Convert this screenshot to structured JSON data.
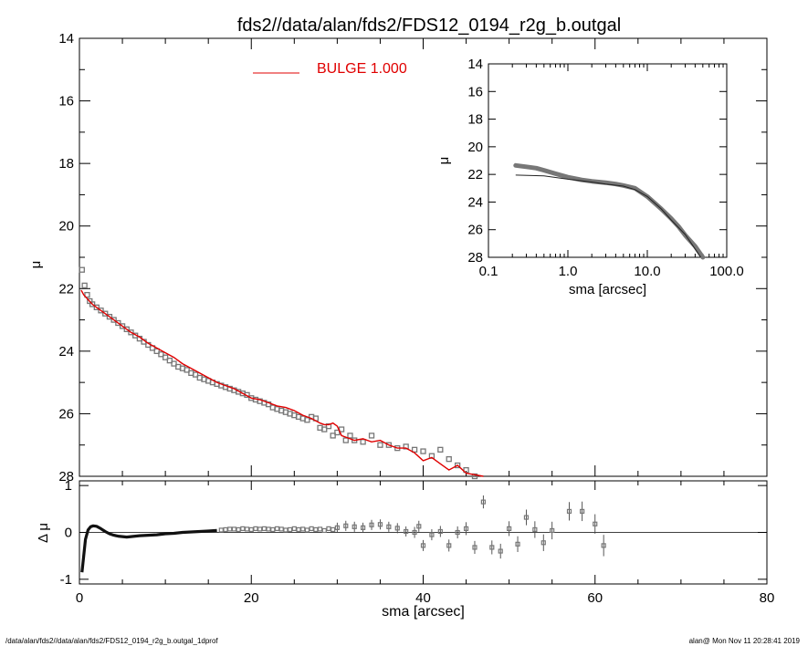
{
  "title": "fds2//data/alan/fds2/FDS12_0194_r2g_b.outgal",
  "footer": {
    "left": "/data/alan/fds2//data/alan/fds2/FDS12_0194_r2g_b.outgal_1dprof",
    "right": "alan@  Mon Nov 11 20:28:41 2019"
  },
  "colors": {
    "model": "#e00000",
    "data": "#777777",
    "axes": "#000000"
  },
  "chart_data": [
    {
      "id": "main-profile",
      "type": "scatter",
      "ylabel": "μ",
      "xlim": [
        0,
        80
      ],
      "ylim": [
        28,
        14
      ],
      "y_inverted": true,
      "yticks": [
        14,
        16,
        18,
        20,
        22,
        24,
        26,
        28
      ],
      "legend": {
        "text": "BULGE  1.000",
        "placement": "top-center"
      },
      "series": [
        {
          "role": "data",
          "x": [
            0.3,
            0.6,
            0.9,
            1.2,
            1.5,
            2,
            2.5,
            3,
            3.5,
            4,
            4.5,
            5,
            5.5,
            6,
            6.5,
            7,
            7.5,
            8,
            8.5,
            9,
            9.5,
            10,
            10.5,
            11,
            11.5,
            12,
            12.5,
            13,
            13.5,
            14,
            14.5,
            15,
            15.5,
            16,
            16.5,
            17,
            17.5,
            18,
            18.5,
            19,
            19.5,
            20,
            20.5,
            21,
            21.5,
            22,
            22.5,
            23,
            23.5,
            24,
            24.5,
            25,
            25.5,
            26,
            26.5,
            27,
            27.5,
            28,
            28.5,
            29,
            29.5,
            30,
            30.5,
            31,
            31.5,
            32,
            33,
            34,
            35,
            36,
            37,
            38,
            39,
            40,
            41,
            42,
            43,
            44,
            45,
            46,
            47,
            48,
            49
          ],
          "y": [
            21.4,
            21.9,
            22.2,
            22.4,
            22.5,
            22.6,
            22.7,
            22.8,
            22.9,
            23.0,
            23.1,
            23.2,
            23.3,
            23.4,
            23.5,
            23.6,
            23.7,
            23.8,
            23.9,
            24.0,
            24.1,
            24.2,
            24.3,
            24.4,
            24.5,
            24.55,
            24.6,
            24.7,
            24.75,
            24.85,
            24.9,
            24.95,
            25.0,
            25.05,
            25.1,
            25.15,
            25.2,
            25.25,
            25.3,
            25.35,
            25.4,
            25.5,
            25.55,
            25.6,
            25.65,
            25.7,
            25.8,
            25.85,
            25.9,
            25.95,
            26.0,
            26.05,
            26.1,
            26.15,
            26.2,
            26.1,
            26.15,
            26.45,
            26.5,
            26.4,
            26.7,
            26.6,
            26.5,
            26.85,
            26.7,
            26.85,
            26.9,
            26.7,
            27.0,
            27.0,
            27.1,
            27.05,
            27.15,
            27.2,
            27.35,
            27.15,
            27.45,
            27.65,
            27.8,
            28.0,
            28.1,
            28.1,
            28.1
          ]
        },
        {
          "role": "model",
          "name": "BULGE  1.000",
          "x": [
            0.2,
            0.5,
            1,
            1.5,
            2,
            3,
            4,
            5,
            6,
            7,
            8,
            9,
            10,
            11,
            12,
            13,
            14,
            15,
            16,
            17,
            18,
            19,
            20,
            21,
            22,
            23,
            24,
            25,
            26,
            27,
            28,
            28.5,
            29,
            29.5,
            30,
            30.5,
            31,
            31.5,
            32,
            33,
            34,
            35,
            36,
            37,
            38,
            39,
            40,
            41,
            42,
            43,
            44,
            45,
            46,
            47
          ],
          "y": [
            22.05,
            22.2,
            22.35,
            22.5,
            22.6,
            22.8,
            23.0,
            23.2,
            23.4,
            23.55,
            23.75,
            23.9,
            24.05,
            24.2,
            24.4,
            24.55,
            24.7,
            24.85,
            25.0,
            25.1,
            25.2,
            25.35,
            25.5,
            25.55,
            25.65,
            25.75,
            25.8,
            25.9,
            26.05,
            26.15,
            26.3,
            26.35,
            26.35,
            26.3,
            26.4,
            26.7,
            26.75,
            26.8,
            26.85,
            26.8,
            26.9,
            26.85,
            27.0,
            27.1,
            27.1,
            27.25,
            27.5,
            27.4,
            27.6,
            27.8,
            27.65,
            27.9,
            27.95,
            28.0
          ]
        }
      ]
    },
    {
      "id": "inset-log-profile",
      "type": "line",
      "xlabel": "sma [arcsec]",
      "ylabel": "μ",
      "x_scale": "log",
      "xlim": [
        0.1,
        100.0
      ],
      "xticks": [
        "0.1",
        "1.0",
        "10.0",
        "100.0"
      ],
      "ylim": [
        28,
        14
      ],
      "y_inverted": true,
      "yticks": [
        14,
        16,
        18,
        20,
        22,
        24,
        26,
        28
      ],
      "series": [
        {
          "role": "data",
          "x": [
            0.22,
            0.3,
            0.4,
            0.5,
            0.7,
            1.0,
            1.5,
            2,
            3,
            4,
            5,
            7,
            10,
            15,
            20,
            25,
            30,
            40,
            50
          ],
          "y": [
            21.35,
            21.45,
            21.55,
            21.7,
            21.95,
            22.2,
            22.4,
            22.5,
            22.6,
            22.7,
            22.8,
            23.0,
            23.6,
            24.5,
            25.2,
            25.8,
            26.4,
            27.2,
            28.0
          ]
        },
        {
          "role": "model",
          "x": [
            0.22,
            0.5,
            1.0,
            2,
            3,
            5,
            7,
            10,
            15,
            20,
            30,
            40,
            47
          ],
          "y": [
            22.05,
            22.1,
            22.35,
            22.55,
            22.7,
            22.85,
            23.1,
            23.6,
            24.5,
            25.3,
            26.35,
            27.4,
            28.0
          ]
        }
      ]
    },
    {
      "id": "residuals",
      "type": "scatter",
      "xlabel": "sma [arcsec]",
      "ylabel": "Δ μ",
      "xlim": [
        0,
        80
      ],
      "xticks": [
        0,
        20,
        40,
        60,
        80
      ],
      "ylim": [
        -1.1,
        1.1
      ],
      "yticks": [
        -1,
        0,
        1
      ],
      "reference_line": 0,
      "series": [
        {
          "role": "curve",
          "x": [
            0.3,
            0.5,
            0.7,
            1.0,
            1.3,
            1.6,
            2.0,
            2.5,
            3,
            3.5,
            4,
            4.5,
            5,
            5.5,
            6,
            6.5,
            7,
            8,
            9,
            10,
            11,
            12,
            13,
            14,
            15,
            16
          ],
          "y": [
            -0.85,
            -0.5,
            -0.15,
            0.05,
            0.12,
            0.14,
            0.13,
            0.08,
            0.02,
            -0.03,
            -0.06,
            -0.08,
            -0.09,
            -0.1,
            -0.09,
            -0.08,
            -0.07,
            -0.06,
            -0.05,
            -0.03,
            -0.02,
            0.0,
            0.01,
            0.02,
            0.03,
            0.04
          ]
        },
        {
          "role": "points",
          "x": [
            16.5,
            17,
            17.5,
            18,
            18.5,
            19,
            19.5,
            20,
            20.5,
            21,
            21.5,
            22,
            22.5,
            23,
            23.5,
            24,
            24.5,
            25,
            25.5,
            26,
            26.5,
            27,
            27.5,
            28,
            28.5,
            29,
            29.5,
            30,
            31,
            32,
            33,
            34,
            35,
            36,
            37,
            38,
            39,
            39.5,
            40,
            41,
            42,
            43,
            44,
            45,
            46,
            47,
            48,
            49,
            50,
            51,
            52,
            53,
            54,
            55,
            57,
            58.5,
            60,
            61
          ],
          "y": [
            0.05,
            0.06,
            0.07,
            0.07,
            0.06,
            0.08,
            0.07,
            0.06,
            0.08,
            0.07,
            0.08,
            0.07,
            0.06,
            0.08,
            0.07,
            0.05,
            0.06,
            0.08,
            0.06,
            0.07,
            0.05,
            0.08,
            0.06,
            0.07,
            0.04,
            0.08,
            0.06,
            0.1,
            0.14,
            0.12,
            0.1,
            0.16,
            0.17,
            0.12,
            0.09,
            0.02,
            0.0,
            0.13,
            -0.28,
            -0.05,
            0.02,
            -0.28,
            0.0,
            0.08,
            -0.32,
            0.65,
            -0.32,
            -0.4,
            0.08,
            -0.25,
            0.32,
            0.06,
            -0.22,
            0.04,
            0.45,
            0.45,
            0.18,
            -0.28
          ],
          "err": [
            0.02,
            0.02,
            0.02,
            0.02,
            0.02,
            0.02,
            0.02,
            0.02,
            0.02,
            0.02,
            0.02,
            0.02,
            0.02,
            0.02,
            0.02,
            0.02,
            0.02,
            0.02,
            0.02,
            0.02,
            0.02,
            0.02,
            0.02,
            0.02,
            0.02,
            0.02,
            0.02,
            0.03,
            0.03,
            0.03,
            0.03,
            0.03,
            0.03,
            0.03,
            0.03,
            0.03,
            0.04,
            0.04,
            0.04,
            0.04,
            0.04,
            0.05,
            0.05,
            0.06,
            0.06,
            0.06,
            0.07,
            0.08,
            0.08,
            0.09,
            0.09,
            0.1,
            0.1,
            0.11,
            0.12,
            0.13,
            0.13,
            0.15
          ]
        }
      ]
    }
  ]
}
